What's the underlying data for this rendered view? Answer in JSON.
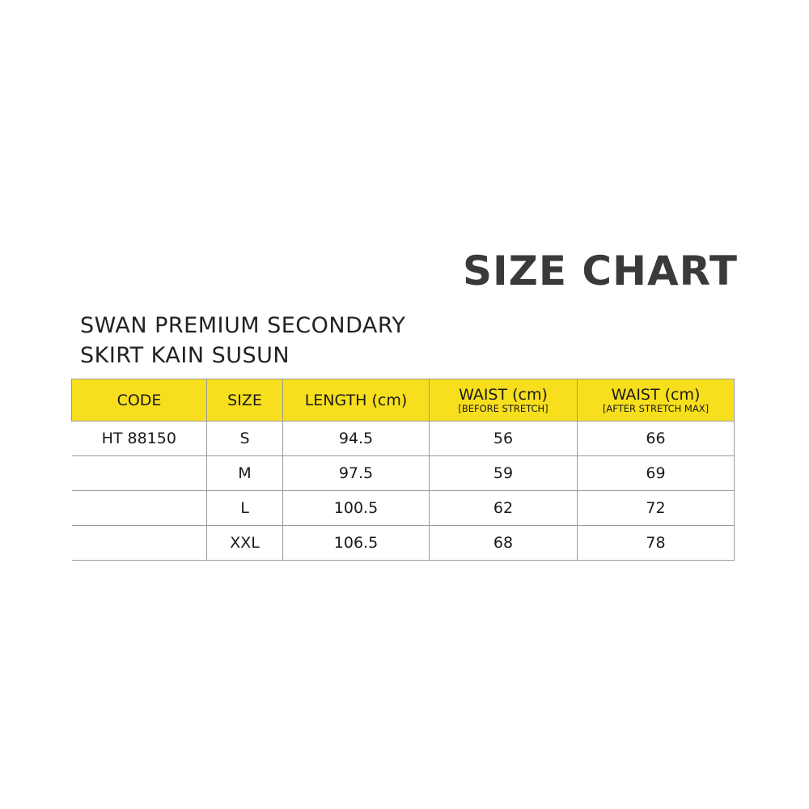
{
  "title": "SIZE CHART",
  "subtitle": {
    "line1": "SWAN PREMIUM SECONDARY",
    "line2": "SKIRT KAIN SUSUN"
  },
  "colors": {
    "header_bg": "#f7df1e",
    "title": "#3a3a3a"
  },
  "table": {
    "headers": [
      {
        "label": "CODE",
        "sub": ""
      },
      {
        "label": "SIZE",
        "sub": ""
      },
      {
        "label": "LENGTH (cm)",
        "sub": ""
      },
      {
        "label": "WAIST (cm)",
        "sub": "[BEFORE STRETCH]"
      },
      {
        "label": "WAIST (cm)",
        "sub": "[AFTER STRETCH MAX]"
      }
    ],
    "rows": [
      [
        "HT 88150",
        "S",
        "94.5",
        "56",
        "66"
      ],
      [
        "",
        "M",
        "97.5",
        "59",
        "69"
      ],
      [
        "",
        "L",
        "100.5",
        "62",
        "72"
      ],
      [
        "",
        "XXL",
        "106.5",
        "68",
        "78"
      ]
    ]
  }
}
